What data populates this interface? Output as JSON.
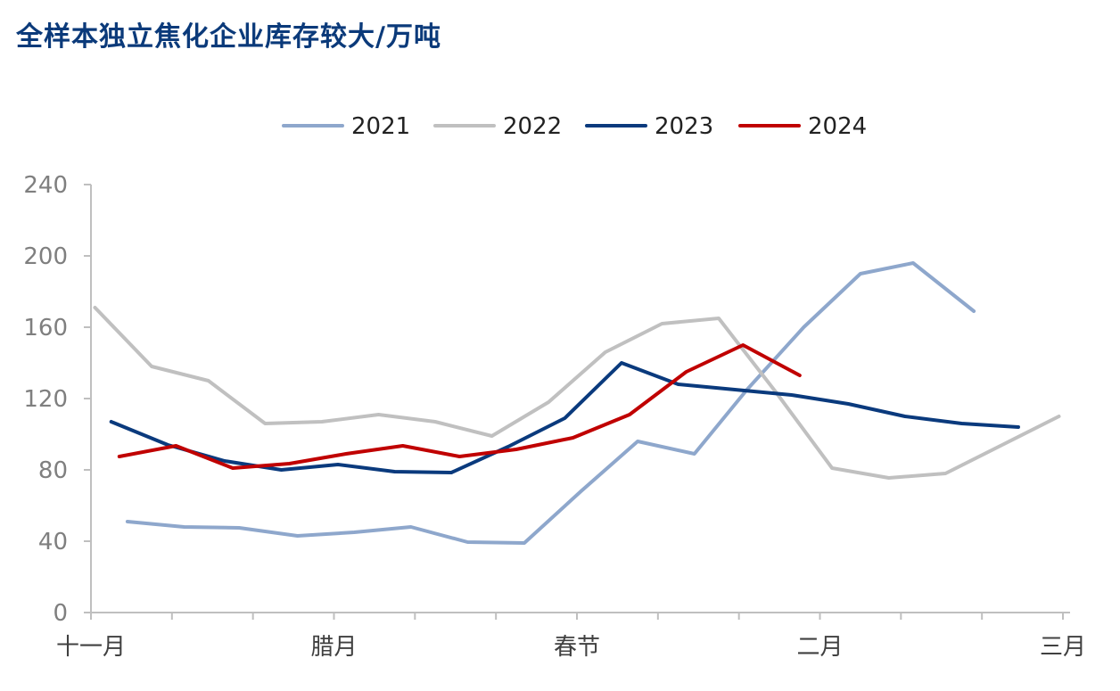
{
  "title": "全样本独立焦化企业库存较大/万吨",
  "chart_data": {
    "type": "line",
    "title": "全样本独立焦化企业库存较大/万吨",
    "ylim": [
      0,
      240
    ],
    "y_ticks": [
      0,
      40,
      80,
      120,
      160,
      200,
      240
    ],
    "categories": [
      "十一月",
      "腊月",
      "春节",
      "二月",
      "三月"
    ],
    "category_positions": [
      0,
      3,
      6,
      9,
      12
    ],
    "xlim": [
      0,
      12
    ],
    "grid": false,
    "legend_position": "top-center",
    "series": [
      {
        "name": "2021",
        "color": "#8ea7cc",
        "x": [
          0.45,
          1.15,
          1.83,
          2.55,
          3.25,
          3.95,
          4.65,
          5.35,
          6.05,
          6.75,
          7.45,
          8.1,
          8.8,
          9.5,
          10.15,
          10.9
        ],
        "y": [
          51,
          48,
          47.5,
          43,
          45,
          48,
          39.5,
          39,
          68,
          96,
          89,
          125,
          160,
          190,
          196,
          169
        ]
      },
      {
        "name": "2022",
        "color": "#c0c0c0",
        "x": [
          0.05,
          0.75,
          1.45,
          2.15,
          2.85,
          3.55,
          4.25,
          4.95,
          5.65,
          6.35,
          7.05,
          7.75,
          8.45,
          9.15,
          9.85,
          10.55,
          11.25,
          11.95
        ],
        "y": [
          171,
          138,
          130,
          106,
          107,
          111,
          107,
          99,
          118,
          146,
          162,
          165,
          124,
          81,
          75.5,
          78,
          94,
          110
        ]
      },
      {
        "name": "2023",
        "color": "#0a3a7d",
        "x": [
          0.25,
          0.95,
          1.65,
          2.35,
          3.05,
          3.75,
          4.45,
          5.15,
          5.85,
          6.55,
          7.25,
          7.95,
          8.65,
          9.35,
          10.05,
          10.75,
          11.45
        ],
        "y": [
          107,
          94,
          85,
          80,
          83,
          79,
          78.5,
          93,
          109,
          140,
          128,
          125,
          122,
          117,
          110,
          106,
          104
        ]
      },
      {
        "name": "2024",
        "color": "#c00000",
        "x": [
          0.35,
          1.05,
          1.75,
          2.45,
          3.15,
          3.85,
          4.55,
          5.25,
          5.95,
          6.65,
          7.35,
          8.05,
          8.75
        ],
        "y": [
          87.5,
          93.5,
          81,
          83.5,
          89,
          93.5,
          87.5,
          91.5,
          98,
          111,
          135,
          150,
          133
        ]
      }
    ]
  }
}
